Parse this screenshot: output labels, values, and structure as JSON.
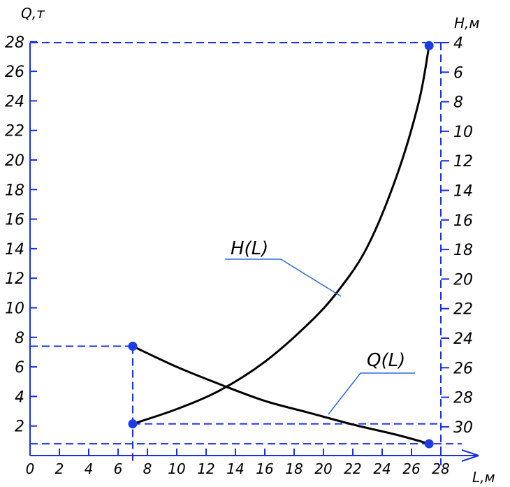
{
  "chart_data": {
    "type": "line",
    "title": "",
    "left_axis": {
      "label": "Q,т",
      "range": [
        0,
        28
      ],
      "ticks": [
        2,
        4,
        6,
        8,
        10,
        12,
        14,
        16,
        18,
        20,
        22,
        24,
        26,
        28
      ]
    },
    "right_axis": {
      "label": "H,м",
      "range": [
        4,
        30
      ],
      "reversed": true,
      "ticks": [
        4,
        6,
        8,
        10,
        12,
        14,
        16,
        18,
        20,
        22,
        24,
        26,
        28,
        30
      ]
    },
    "x_axis": {
      "label": "L,м",
      "range": [
        0,
        28
      ],
      "ticks": [
        0,
        2,
        4,
        6,
        8,
        10,
        12,
        14,
        16,
        18,
        20,
        22,
        24,
        26,
        28
      ]
    },
    "series": [
      {
        "name": "H(L)",
        "axis": "right",
        "x": [
          7,
          10,
          13,
          16,
          19,
          21,
          23,
          25,
          26.5,
          27.2
        ],
        "y": [
          29.8,
          28.8,
          27.5,
          25.6,
          23.0,
          20.8,
          17.8,
          13.0,
          8.0,
          4.2
        ],
        "markers": [
          [
            7,
            29.8
          ],
          [
            27.2,
            4.2
          ]
        ]
      },
      {
        "name": "Q(L)",
        "axis": "left",
        "x": [
          7,
          10,
          13,
          16,
          19,
          22,
          25,
          27.2
        ],
        "y": [
          7.4,
          6.0,
          4.8,
          3.7,
          2.9,
          2.1,
          1.4,
          0.8
        ],
        "markers": [
          [
            7,
            7.4
          ],
          [
            27.2,
            0.8
          ]
        ]
      }
    ],
    "grid": false,
    "legend": "inline labels"
  },
  "colors": {
    "frame": "#1a2ee6",
    "curve": "#000000",
    "leader": "#2a6bd8",
    "marker": "#1a3be6",
    "text": "#000000"
  }
}
